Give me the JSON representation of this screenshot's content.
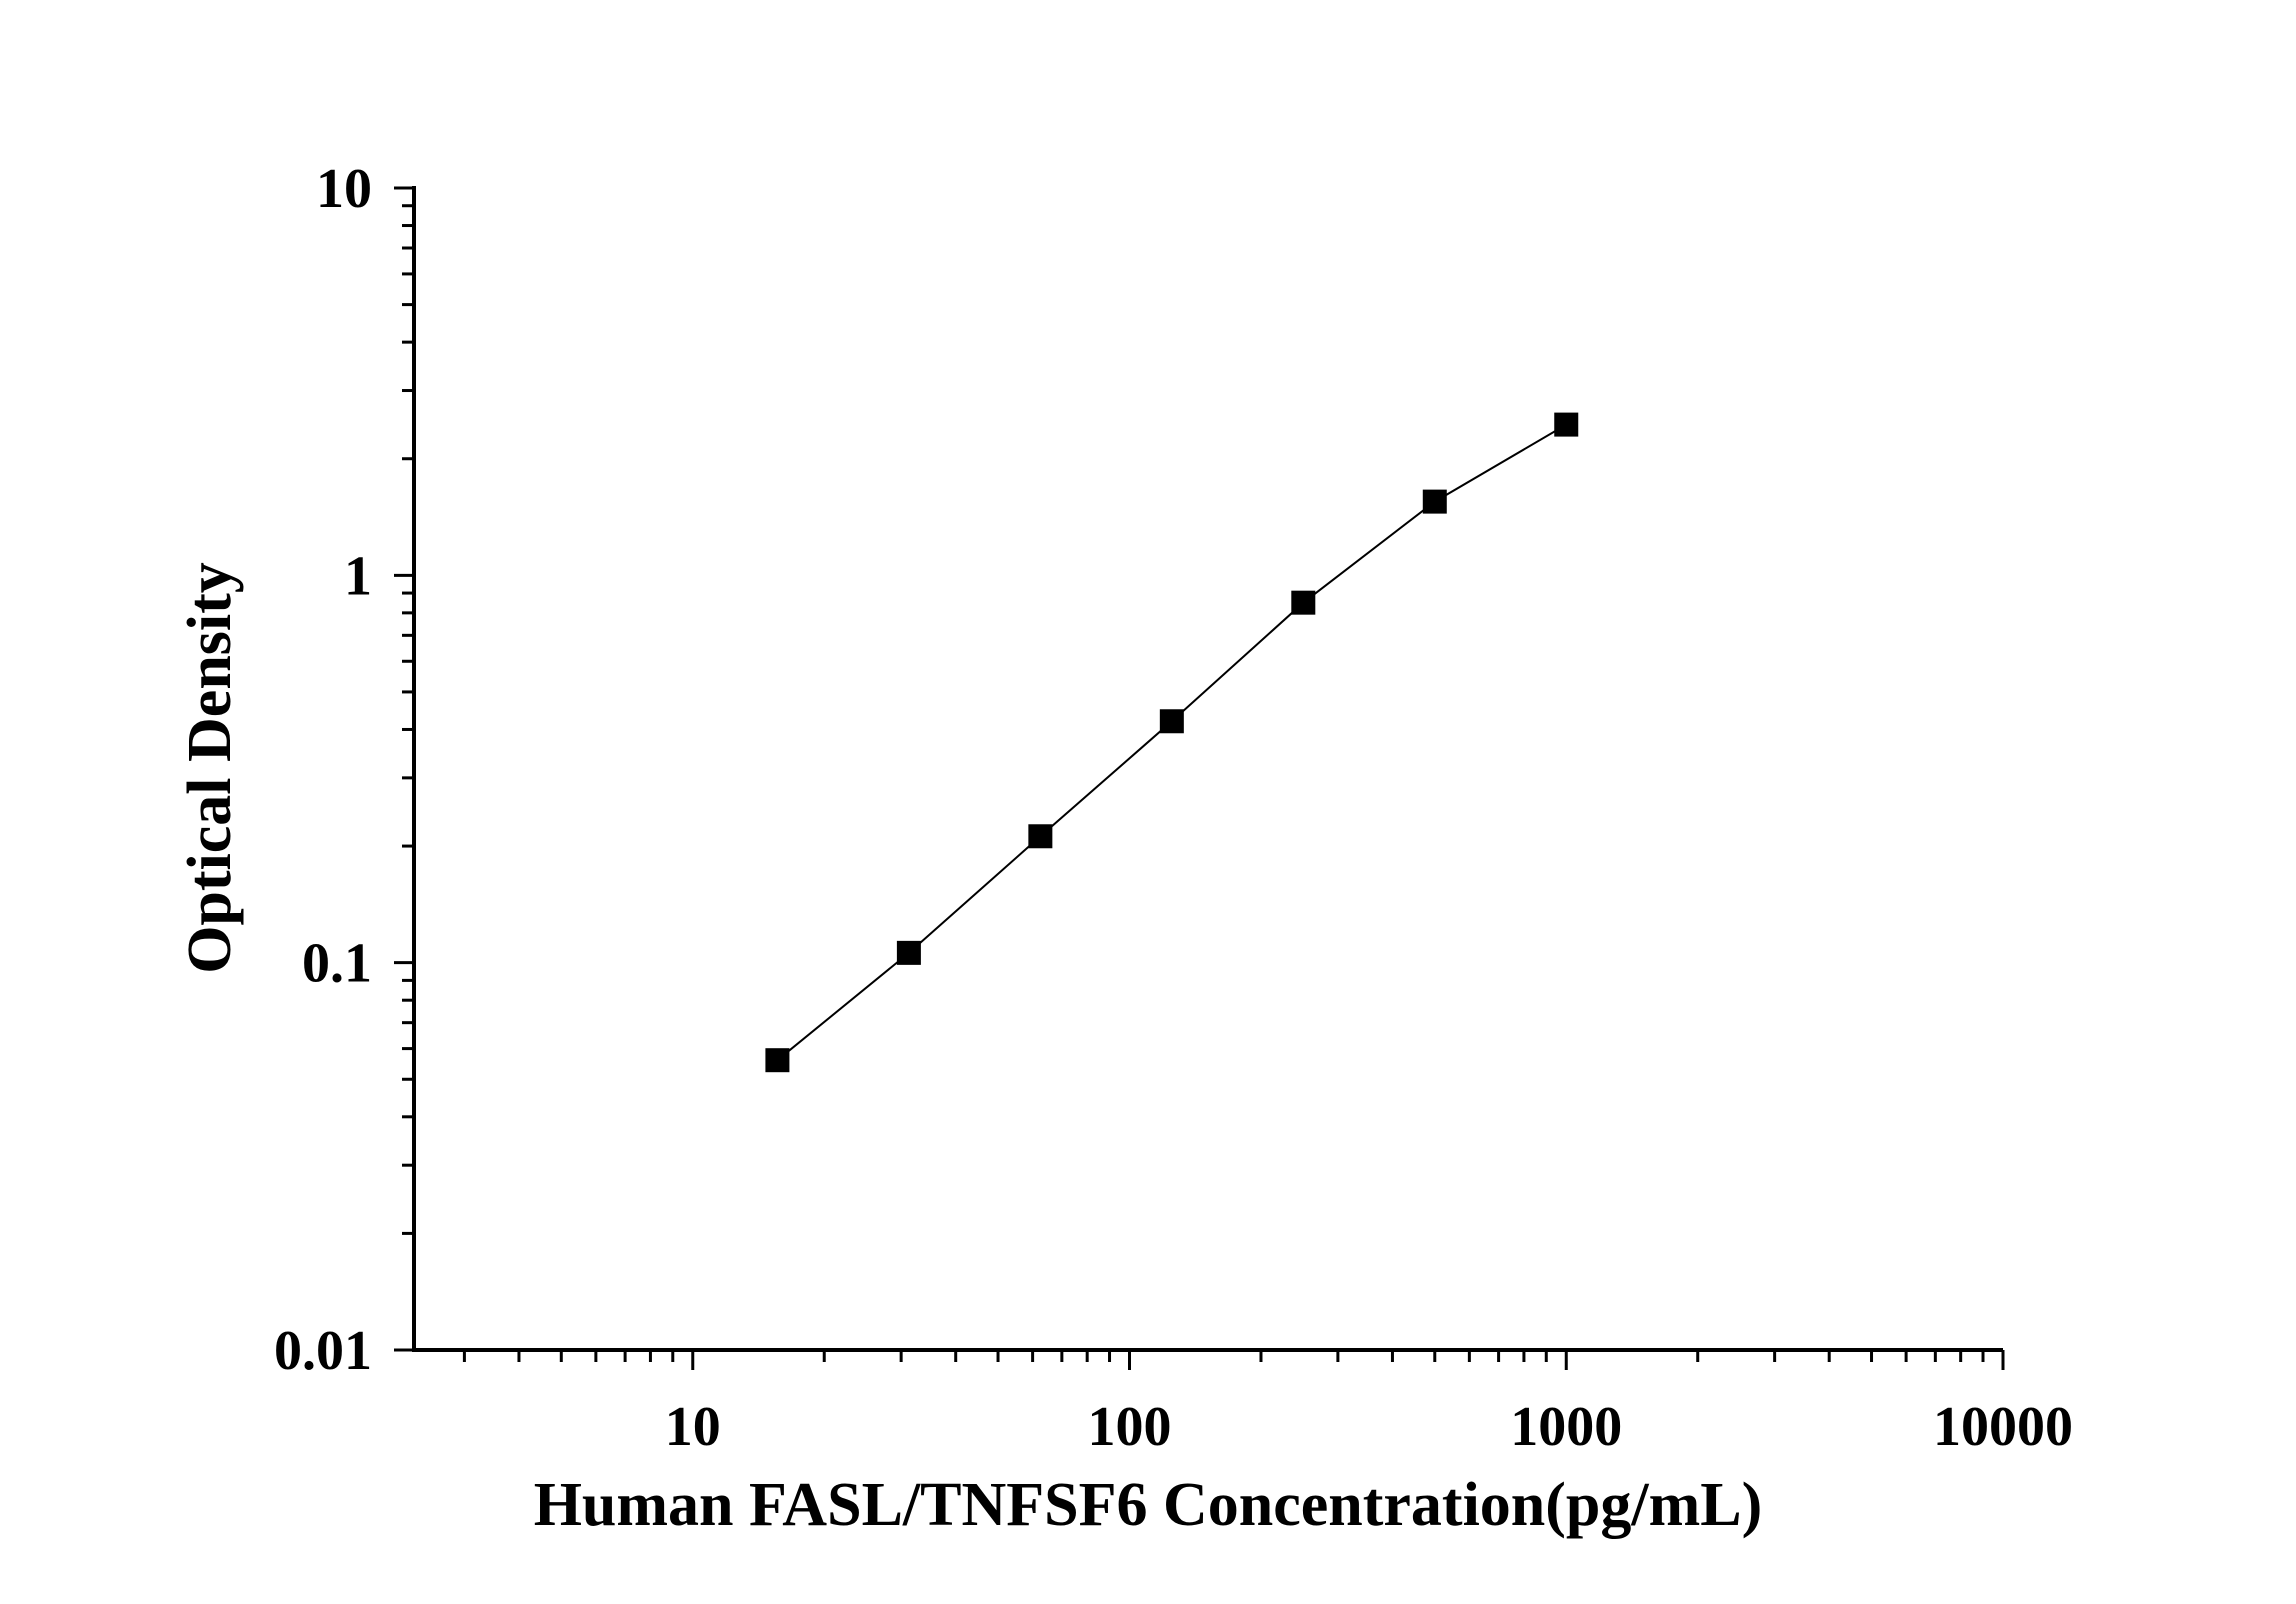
{
  "chart_data": {
    "type": "scatter",
    "title": "",
    "xlabel": "Human FASL/TNFSF6 Concentration(pg/mL)",
    "ylabel": "Optical Density",
    "x_scale": "log",
    "y_scale": "log",
    "xlim": [
      2.3,
      10000
    ],
    "ylim": [
      0.01,
      10
    ],
    "x_ticks": [
      "10",
      "100",
      "1000",
      "10000"
    ],
    "y_ticks": [
      "0.01",
      "0.1",
      "1",
      "10"
    ],
    "grid": false,
    "legend": "none",
    "marker": "square",
    "line": "connected",
    "color": "#000000",
    "series": [
      {
        "x": [
          15.625,
          31.25,
          62.5,
          125,
          250,
          500,
          1000
        ],
        "y": [
          0.056,
          0.106,
          0.212,
          0.42,
          0.85,
          1.55,
          2.45
        ]
      }
    ]
  }
}
